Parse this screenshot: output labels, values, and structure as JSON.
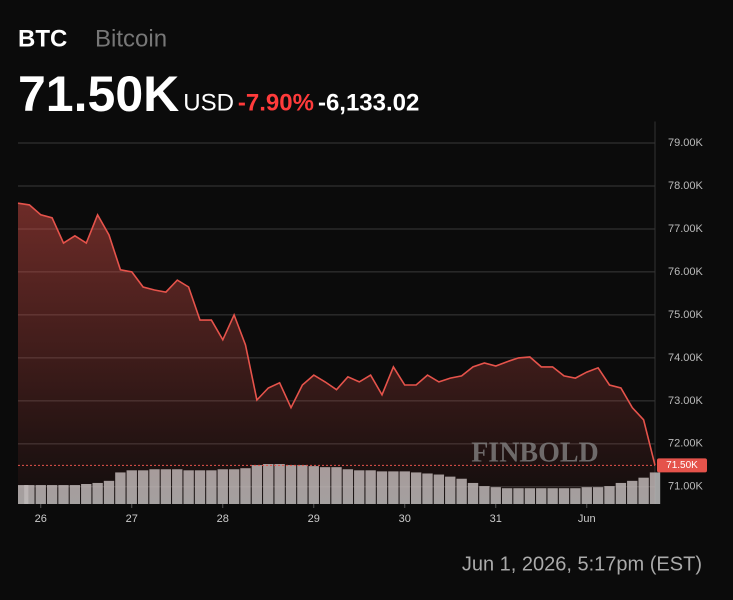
{
  "chart_data": {
    "type": "line",
    "symbol": "BTC",
    "name": "Bitcoin",
    "currency": "USD",
    "change_percent": "-7.90%",
    "change": "-6,133.02",
    "timestamp": "Jun 1, 2026, 5:17pm (EST)",
    "watermark": "FINBOLD",
    "current": {
      "value": 71500,
      "label": "71.50K"
    },
    "x": [
      0,
      1,
      2,
      3,
      4,
      5,
      6,
      7,
      8,
      9,
      10,
      11,
      12,
      13,
      14,
      15,
      16,
      17,
      18,
      19,
      20,
      21,
      22,
      23,
      24,
      25,
      26,
      27,
      28,
      29,
      30,
      31,
      32,
      33,
      34,
      35,
      36,
      37,
      38,
      39,
      40,
      41,
      42,
      43,
      44,
      45,
      46,
      47,
      48,
      49,
      50,
      51,
      52,
      53,
      54,
      55,
      56
    ],
    "series": [
      {
        "color": "#e5534b",
        "values": [
          77600,
          77560,
          77330,
          77260,
          76670,
          76840,
          76670,
          77330,
          76860,
          76050,
          76000,
          75650,
          75580,
          75530,
          75810,
          75650,
          74880,
          74880,
          74420,
          75000,
          74300,
          73020,
          73300,
          73420,
          72840,
          73370,
          73600,
          73440,
          73260,
          73560,
          73440,
          73600,
          73140,
          73790,
          73370,
          73370,
          73600,
          73440,
          73530,
          73580,
          73790,
          73880,
          73810,
          73910,
          74000,
          74020,
          73790,
          73790,
          73580,
          73530,
          73670,
          73770,
          73370,
          73300,
          72840,
          72560,
          71500
        ]
      }
    ],
    "volume": {
      "color": "#bdbdbd",
      "values": [
        18,
        18,
        18,
        18,
        18,
        18,
        19,
        20,
        22,
        30,
        32,
        32,
        33,
        33,
        33,
        32,
        32,
        32,
        33,
        33,
        34,
        37,
        38,
        38,
        37,
        37,
        36,
        35,
        35,
        33,
        32,
        32,
        31,
        31,
        31,
        30,
        29,
        28,
        26,
        24,
        20,
        17,
        16,
        15,
        15,
        15,
        15,
        15,
        15,
        15,
        16,
        16,
        17,
        20,
        22,
        25,
        30
      ]
    },
    "xlim": [
      0,
      56
    ],
    "xticks": [
      {
        "value": 2,
        "label": "26"
      },
      {
        "value": 10,
        "label": "27"
      },
      {
        "value": 18,
        "label": "28"
      },
      {
        "value": 26,
        "label": "29"
      },
      {
        "value": 34,
        "label": "30"
      },
      {
        "value": 42,
        "label": "31"
      },
      {
        "value": 50,
        "label": "Jun"
      }
    ],
    "ylim": [
      70600,
      79500
    ],
    "yticks": [
      {
        "value": 71000,
        "label": "71.00K"
      },
      {
        "value": 72000,
        "label": "72.00K"
      },
      {
        "value": 73000,
        "label": "73.00K"
      },
      {
        "value": 74000,
        "label": "74.00K"
      },
      {
        "value": 75000,
        "label": "75.00K"
      },
      {
        "value": 76000,
        "label": "76.00K"
      },
      {
        "value": 77000,
        "label": "77.00K"
      },
      {
        "value": 78000,
        "label": "78.00K"
      },
      {
        "value": 79000,
        "label": "79.00K"
      }
    ],
    "grid": true
  }
}
